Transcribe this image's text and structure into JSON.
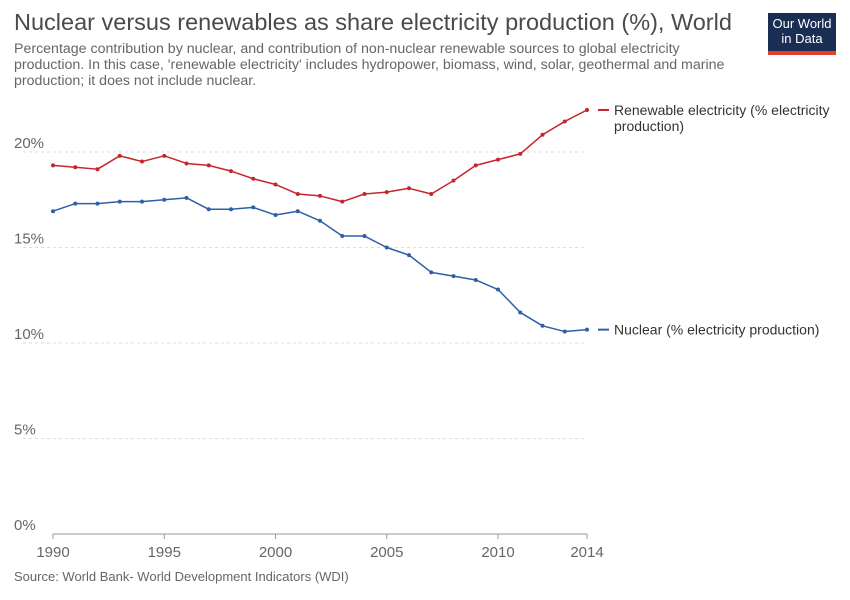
{
  "header": {
    "title": "Nuclear versus renewables as share electricity production (%), World",
    "subtitle": "Percentage contribution by nuclear, and contribution of non-nuclear renewable sources to global electricity production. In this case, 'renewable electricity' includes hydropower, biomass, wind, solar, geothermal and marine production; it does not include nuclear.",
    "logo_line1": "Our World",
    "logo_line2": "in Data"
  },
  "footer": {
    "source": "Source: World Bank- World Development Indicators (WDI)"
  },
  "colors": {
    "renewable": "#c4262e",
    "nuclear": "#2f5fa7",
    "grid": "#dddddd",
    "logo_bg": "#1a2d52",
    "logo_accent": "#e0412c"
  },
  "chart_data": {
    "type": "line",
    "x": [
      1990,
      1991,
      1992,
      1993,
      1994,
      1995,
      1996,
      1997,
      1998,
      1999,
      2000,
      2001,
      2002,
      2003,
      2004,
      2005,
      2006,
      2007,
      2008,
      2009,
      2010,
      2011,
      2012,
      2013,
      2014
    ],
    "series": [
      {
        "name": "Renewable electricity (% electricity production)",
        "label_lines": [
          "Renewable electricity (% electricity",
          "production)"
        ],
        "color": "#c4262e",
        "values": [
          19.3,
          19.2,
          19.1,
          19.8,
          19.5,
          19.8,
          19.4,
          19.3,
          19.0,
          18.6,
          18.3,
          17.8,
          17.7,
          17.4,
          17.8,
          17.9,
          18.1,
          17.8,
          18.5,
          19.3,
          19.6,
          19.9,
          20.9,
          21.6,
          22.2
        ]
      },
      {
        "name": "Nuclear (% electricity production)",
        "label_lines": [
          "Nuclear (% electricity production)"
        ],
        "color": "#2f5fa7",
        "values": [
          16.9,
          17.3,
          17.3,
          17.4,
          17.4,
          17.5,
          17.6,
          17.0,
          17.0,
          17.1,
          16.7,
          16.9,
          16.4,
          15.6,
          15.6,
          15.0,
          14.6,
          13.7,
          13.5,
          13.3,
          12.8,
          11.6,
          10.9,
          10.6,
          10.7
        ]
      }
    ],
    "x_ticks": [
      1990,
      1995,
      2000,
      2005,
      2010,
      2014
    ],
    "y_ticks": [
      0,
      5,
      10,
      15,
      20
    ],
    "y_tick_labels": [
      "0%",
      "5%",
      "10%",
      "15%",
      "20%"
    ],
    "xlim": [
      1990,
      2014
    ],
    "ylim": [
      0,
      22.5
    ],
    "grid": true,
    "legend": "inline-right"
  }
}
